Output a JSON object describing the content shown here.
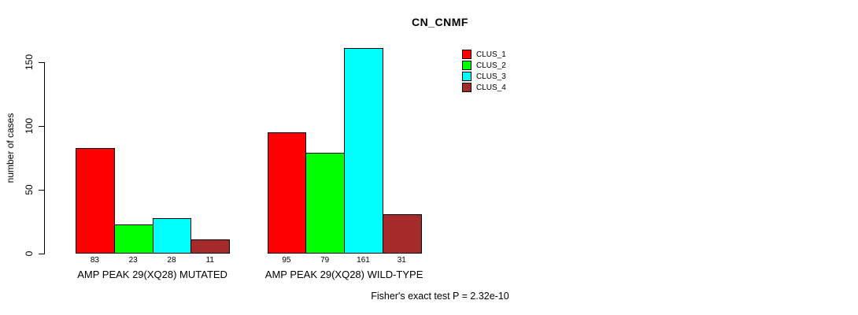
{
  "chart_data": {
    "type": "bar",
    "title": "CN_CNMF",
    "ylabel": "number of cases",
    "xlabel": "",
    "ylim": [
      0,
      150
    ],
    "yticks": [
      0,
      50,
      100,
      150
    ],
    "grid": false,
    "legend_position": "top-right",
    "categories": [
      "AMP PEAK 29(XQ28) MUTATED",
      "AMP PEAK 29(XQ28) WILD-TYPE"
    ],
    "series": [
      {
        "name": "CLUS_1",
        "color": "#FF0000",
        "values": [
          83,
          95
        ]
      },
      {
        "name": "CLUS_2",
        "color": "#00FF00",
        "values": [
          23,
          79
        ]
      },
      {
        "name": "CLUS_3",
        "color": "#00FFFF",
        "values": [
          28,
          161
        ]
      },
      {
        "name": "CLUS_4",
        "color": "#A52A2A",
        "values": [
          11,
          31
        ]
      }
    ],
    "value_labels_shown": true,
    "annotation": "Fisher's exact test P = 2.32e-10"
  }
}
